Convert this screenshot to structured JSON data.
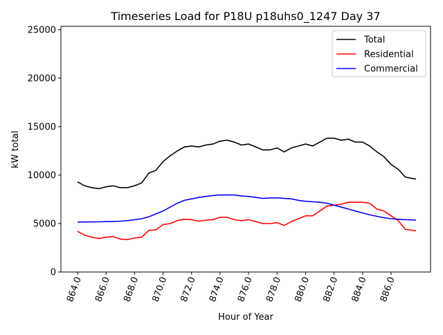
{
  "chart_data": {
    "type": "line",
    "title": "Timeseries Load for P18U p18uhs0_1247  Day 37",
    "xlabel": "Hour of Year",
    "ylabel": "kW total",
    "xlim": [
      862.83,
      888.77
    ],
    "ylim": [
      0,
      25350
    ],
    "xticks": [
      864,
      866,
      868,
      870,
      872,
      874,
      876,
      878,
      880,
      882,
      884,
      886
    ],
    "xtick_labels": [
      "864.0",
      "866.0",
      "868.0",
      "870.0",
      "872.0",
      "874.0",
      "876.0",
      "878.0",
      "880.0",
      "882.0",
      "884.0",
      "886.0"
    ],
    "yticks": [
      0,
      5000,
      10000,
      15000,
      20000,
      25000
    ],
    "ytick_labels": [
      "0",
      "5000",
      "10000",
      "15000",
      "20000",
      "25000"
    ],
    "grid": false,
    "legend_position": "top-right",
    "x": [
      864,
      864.5,
      865,
      865.5,
      866,
      866.5,
      867,
      867.5,
      868,
      868.5,
      869,
      869.5,
      870,
      870.5,
      871,
      871.5,
      872,
      872.5,
      873,
      873.5,
      874,
      874.5,
      875,
      875.5,
      876,
      876.5,
      877,
      877.5,
      878,
      878.5,
      879,
      879.5,
      880,
      880.5,
      881,
      881.5,
      882,
      882.5,
      883,
      883.5,
      884,
      884.5,
      885,
      885.5,
      886,
      886.5,
      887,
      887.5,
      887.75
    ],
    "series": [
      {
        "name": "Total",
        "color": "#000000",
        "values": [
          9300,
          8900,
          8700,
          8600,
          8800,
          8900,
          8700,
          8700,
          8900,
          9200,
          10200,
          10500,
          11400,
          12000,
          12500,
          12900,
          13000,
          12900,
          13100,
          13200,
          13500,
          13600,
          13400,
          13100,
          13200,
          12900,
          12600,
          12600,
          12800,
          12400,
          12800,
          13000,
          13200,
          13000,
          13400,
          13800,
          13800,
          13600,
          13700,
          13400,
          13400,
          13000,
          12400,
          11900,
          11100,
          10600,
          9800,
          9650,
          9600
        ]
      },
      {
        "name": "Residential",
        "color": "#ff0000",
        "values": [
          4200,
          3800,
          3600,
          3450,
          3600,
          3650,
          3400,
          3350,
          3500,
          3600,
          4300,
          4350,
          4900,
          5000,
          5300,
          5450,
          5400,
          5250,
          5350,
          5400,
          5650,
          5650,
          5400,
          5300,
          5400,
          5200,
          5000,
          5000,
          5100,
          4800,
          5200,
          5500,
          5800,
          5800,
          6300,
          6800,
          6900,
          7000,
          7200,
          7200,
          7200,
          7100,
          6500,
          6300,
          5800,
          5300,
          4400,
          4300,
          4250
        ]
      },
      {
        "name": "Commercial",
        "color": "#0000ff",
        "values": [
          5150,
          5160,
          5170,
          5180,
          5200,
          5220,
          5250,
          5300,
          5400,
          5500,
          5700,
          6000,
          6300,
          6700,
          7100,
          7400,
          7550,
          7700,
          7800,
          7900,
          7950,
          7950,
          7950,
          7850,
          7800,
          7700,
          7600,
          7650,
          7650,
          7600,
          7550,
          7400,
          7300,
          7250,
          7200,
          7100,
          6900,
          6700,
          6500,
          6300,
          6100,
          5900,
          5750,
          5600,
          5500,
          5450,
          5400,
          5380,
          5350
        ]
      }
    ]
  }
}
